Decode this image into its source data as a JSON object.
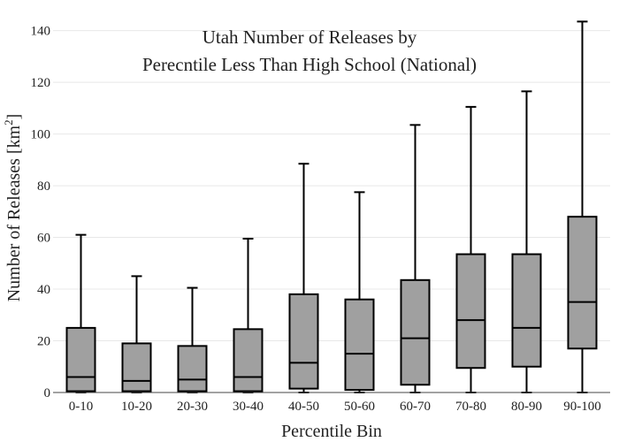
{
  "chart_data": {
    "type": "box",
    "title_lines": [
      "Utah Number of Releases by",
      "Perecntile Less Than High School (National)"
    ],
    "xlabel": "Percentile Bin",
    "ylabel_main": "Number of Releases  [km",
    "ylabel_sup": "2",
    "ylabel_end": "]",
    "categories": [
      "0-10",
      "10-20",
      "20-30",
      "30-40",
      "40-50",
      "50-60",
      "60-70",
      "70-80",
      "80-90",
      "90-100"
    ],
    "ylim": [
      0,
      145
    ],
    "yticks": [
      0,
      20,
      40,
      60,
      80,
      100,
      120,
      140
    ],
    "grid": true,
    "box_color": "#a0a0a0",
    "boxes": [
      {
        "min": 0,
        "q1": 0.5,
        "median": 6,
        "q3": 25,
        "max": 61
      },
      {
        "min": 0,
        "q1": 0.5,
        "median": 4.5,
        "q3": 19,
        "max": 45
      },
      {
        "min": 0,
        "q1": 0.5,
        "median": 5,
        "q3": 18,
        "max": 40.5
      },
      {
        "min": 0,
        "q1": 0.5,
        "median": 6,
        "q3": 24.5,
        "max": 59.5
      },
      {
        "min": 0,
        "q1": 1.5,
        "median": 11.5,
        "q3": 38,
        "max": 88.5
      },
      {
        "min": 0,
        "q1": 1,
        "median": 15,
        "q3": 36,
        "max": 77.5
      },
      {
        "min": 0,
        "q1": 3,
        "median": 21,
        "q3": 43.5,
        "max": 103.5
      },
      {
        "min": 0,
        "q1": 9.5,
        "median": 28,
        "q3": 53.5,
        "max": 110.5
      },
      {
        "min": 0,
        "q1": 10,
        "median": 25,
        "q3": 53.5,
        "max": 116.5
      },
      {
        "min": 0,
        "q1": 17,
        "median": 35,
        "q3": 68,
        "max": 143.5
      }
    ]
  }
}
